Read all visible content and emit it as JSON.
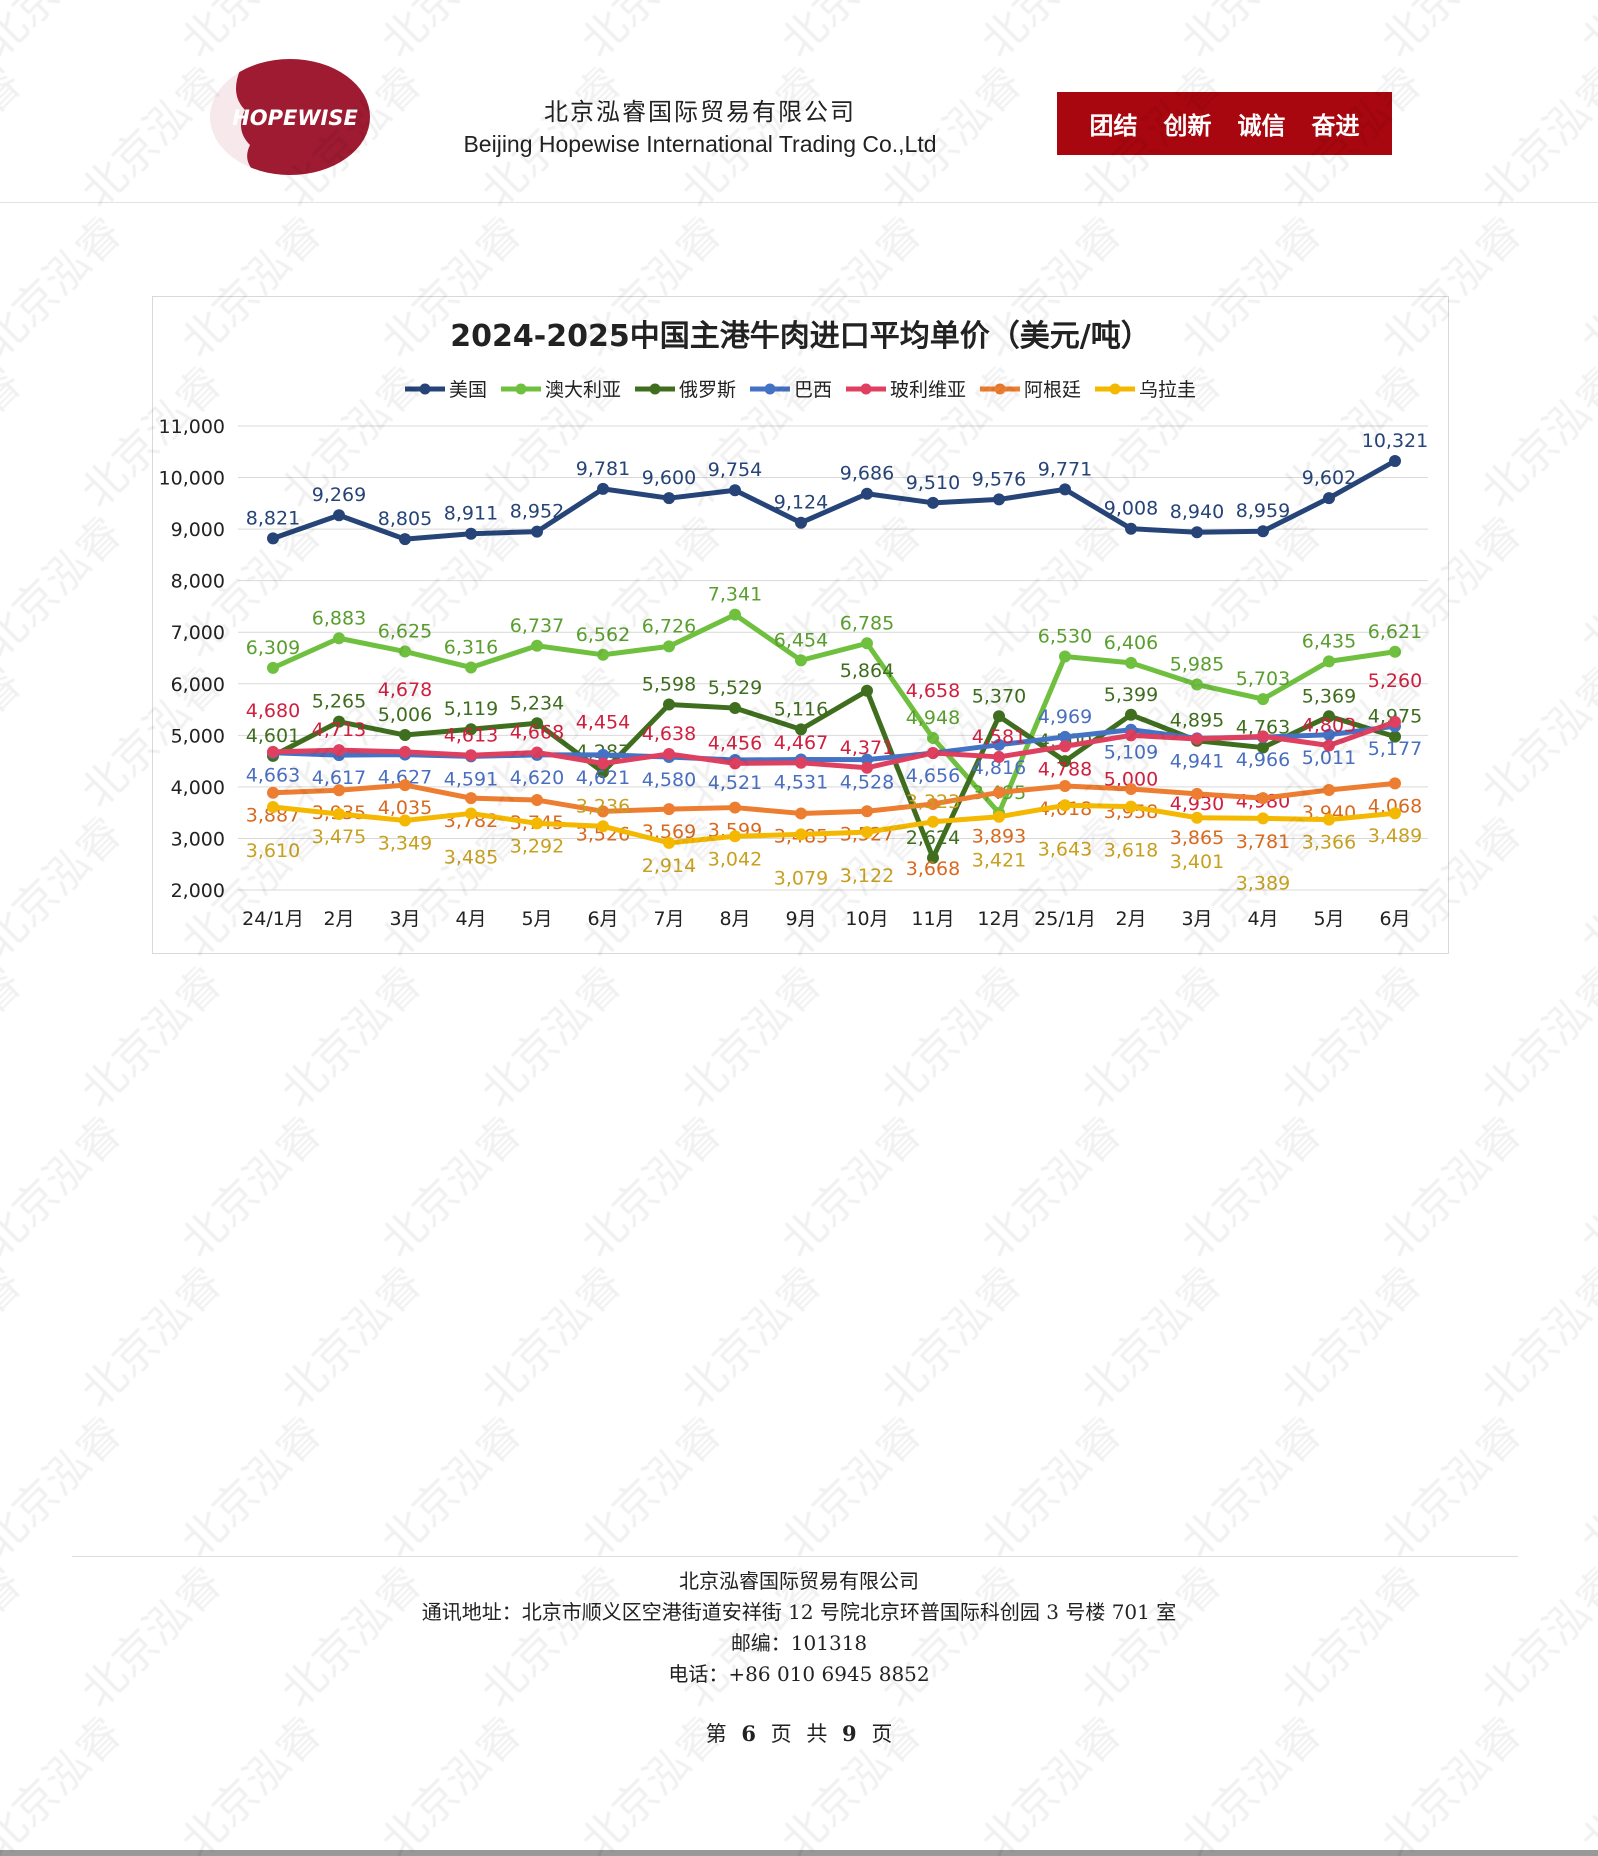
{
  "header": {
    "logo_text": "HOPEWISE",
    "company_cn": "北京泓睿国际贸易有限公司",
    "company_en": "Beijing Hopewise International Trading Co.,Ltd",
    "slogans": [
      "团结",
      "创新",
      "诚信",
      "奋进"
    ],
    "brand_color": "#a8070f"
  },
  "watermark": "北京泓睿",
  "chart_data": {
    "type": "line",
    "title": "2024-2025中国主港牛肉进口平均单价（美元/吨）",
    "xlabel": "",
    "ylabel": "",
    "ylim": [
      2000,
      11000
    ],
    "yticks": [
      "2,000",
      "3,000",
      "4,000",
      "5,000",
      "6,000",
      "7,000",
      "8,000",
      "9,000",
      "10,000",
      "11,000"
    ],
    "grid": true,
    "legend_position": "top",
    "categories": [
      "24/1月",
      "2月",
      "3月",
      "4月",
      "5月",
      "6月",
      "7月",
      "8月",
      "9月",
      "10月",
      "11月",
      "12月",
      "25/1月",
      "2月",
      "3月",
      "4月",
      "5月",
      "6月"
    ],
    "series": [
      {
        "name": "美国",
        "color": "#264478",
        "label_color": "#264478",
        "values": [
          8821,
          9269,
          8805,
          8911,
          8952,
          9781,
          9600,
          9754,
          9124,
          9686,
          9510,
          9576,
          9771,
          9008,
          8940,
          8959,
          9602,
          10321
        ]
      },
      {
        "name": "澳大利亚",
        "color": "#70c040",
        "label_color": "#5a9e30",
        "values": [
          6309,
          6883,
          6625,
          6316,
          6737,
          6562,
          6726,
          7341,
          6454,
          6785,
          4948,
          3495,
          6530,
          6406,
          5985,
          5703,
          6435,
          6621
        ]
      },
      {
        "name": "俄罗斯",
        "color": "#3f6e1f",
        "label_color": "#3f6e1f",
        "values": [
          4601,
          5265,
          5006,
          5119,
          5234,
          4287,
          5598,
          5529,
          5116,
          5864,
          2624,
          5370,
          4500,
          5399,
          4895,
          4763,
          5369,
          4975
        ]
      },
      {
        "name": "巴西",
        "color": "#4472c4",
        "label_color": "#4a6fc0",
        "values": [
          4663,
          4617,
          4627,
          4591,
          4620,
          4621,
          4580,
          4521,
          4531,
          4528,
          4656,
          4816,
          4969,
          5109,
          4941,
          4966,
          5011,
          5177
        ]
      },
      {
        "name": "玻利维亚",
        "color": "#e04060",
        "label_color": "#d02040",
        "values": [
          4680,
          4713,
          4678,
          4613,
          4668,
          4454,
          4638,
          4456,
          4467,
          4371,
          4658,
          4581,
          4788,
          5000,
          4930,
          4980,
          4803,
          5260
        ]
      },
      {
        "name": "阿根廷",
        "color": "#ed7d31",
        "label_color": "#d86a20",
        "values": [
          3887,
          3935,
          4035,
          3782,
          3745,
          3526,
          3569,
          3599,
          3485,
          3527,
          3668,
          3893,
          4018,
          3958,
          3865,
          3781,
          3940,
          4068
        ]
      },
      {
        "name": "乌拉圭",
        "color": "#f4b800",
        "label_color": "#c8a020",
        "values": [
          3610,
          3475,
          3349,
          3485,
          3292,
          3236,
          2914,
          3042,
          3079,
          3122,
          3323,
          3421,
          3643,
          3618,
          3401,
          3389,
          3366,
          3489
        ]
      }
    ]
  },
  "footer": {
    "company": "北京泓睿国际贸易有限公司",
    "address": "通讯地址：北京市顺义区空港街道安祥街 12 号院北京环普国际科创园 3 号楼 701 室",
    "postcode": "邮编：101318",
    "phone": "电话：+86 010 6945 8852",
    "page_prefix": "第",
    "page_current": "6",
    "page_mid": "页 共",
    "page_total": "9",
    "page_suffix": "页"
  }
}
